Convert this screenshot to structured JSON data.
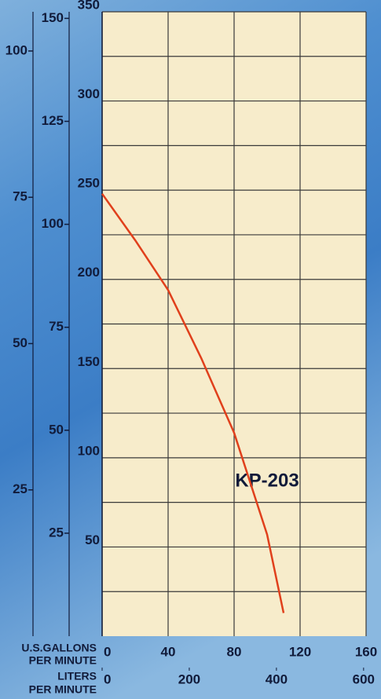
{
  "chart_data": {
    "type": "line",
    "annotation": "KP-203",
    "x_label": [
      "U.S.GALLONS",
      "PER MINUTE"
    ],
    "x2_label": [
      "LITERS",
      "PER MINUTE"
    ],
    "xlim": [
      0,
      160
    ],
    "xticks": [
      0,
      40,
      80,
      120,
      160
    ],
    "x2lim": [
      0,
      605.7
    ],
    "x2ticks": [
      0,
      200,
      400,
      600
    ],
    "ylim": [
      0,
      350
    ],
    "yticks": [
      50,
      100,
      150,
      200,
      250,
      300,
      350
    ],
    "y_minor_grid": [
      25,
      75,
      125,
      175,
      225,
      275,
      325
    ],
    "extra_y_axes": [
      {
        "ylim": [
          0,
          106.7
        ],
        "yticks": [
          25,
          50,
          75,
          100
        ]
      },
      {
        "ylim": [
          0,
          151.6
        ],
        "yticks": [
          25,
          50,
          75,
          100,
          125,
          150
        ]
      }
    ],
    "grid": true,
    "x": [
      0,
      20,
      40,
      60,
      80,
      100,
      110
    ],
    "series": [
      {
        "name": "KP-203",
        "color": "#e0401c",
        "values": [
          248,
          222,
          194,
          156,
          114,
          57,
          13
        ]
      }
    ]
  }
}
